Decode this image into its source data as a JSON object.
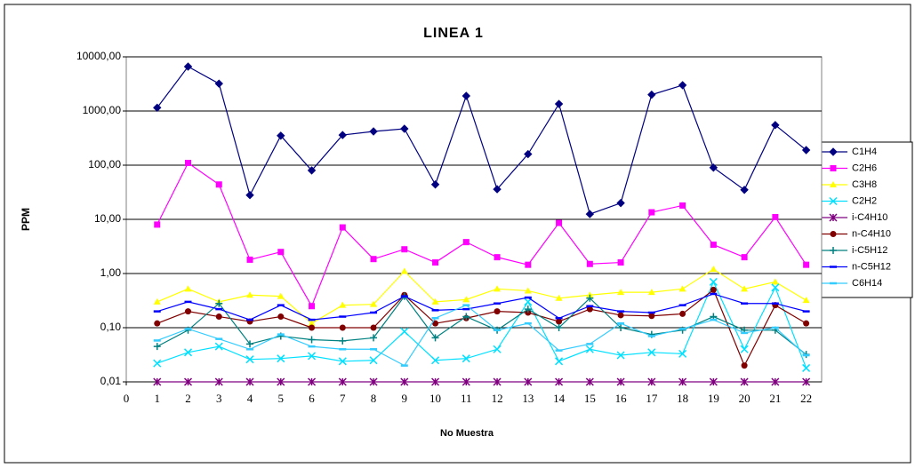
{
  "chart_data": {
    "type": "line",
    "title": "LINEA 1",
    "y_label": "PPM",
    "x_label": "No Muestra",
    "log_y": true,
    "grid": true,
    "legend": "right",
    "x": [
      1,
      2,
      3,
      4,
      5,
      6,
      7,
      8,
      9,
      10,
      11,
      12,
      13,
      14,
      15,
      16,
      17,
      18,
      19,
      20,
      21,
      22
    ],
    "xlim": [
      0,
      22.5
    ],
    "xticks": [
      0,
      1,
      2,
      3,
      4,
      5,
      6,
      7,
      8,
      9,
      10,
      11,
      12,
      13,
      14,
      15,
      16,
      17,
      18,
      19,
      20,
      21,
      22
    ],
    "ylim": [
      0.01,
      10000
    ],
    "yticks": [
      {
        "value": 0.01,
        "label": "0,01"
      },
      {
        "value": 0.1,
        "label": "0,10"
      },
      {
        "value": 1,
        "label": "1,00"
      },
      {
        "value": 10,
        "label": "10,00"
      },
      {
        "value": 100,
        "label": "100,00"
      },
      {
        "value": 1000,
        "label": "1000,00"
      },
      {
        "value": 10000,
        "label": "10000,00"
      }
    ],
    "series": [
      {
        "name": "C1H4",
        "color": "#000080",
        "marker": "diamond",
        "values": [
          1150,
          6600,
          3200,
          28,
          350,
          80,
          360,
          420,
          470,
          44,
          1900,
          36,
          160,
          1350,
          12.5,
          20,
          2000,
          3000,
          90,
          35,
          550,
          190
        ]
      },
      {
        "name": "C2H6",
        "color": "#FF00FF",
        "marker": "square",
        "values": [
          8,
          110,
          44,
          1.8,
          2.5,
          0.25,
          7.1,
          1.85,
          2.8,
          1.6,
          3.8,
          2,
          1.45,
          8.6,
          1.5,
          1.6,
          13.5,
          18,
          3.4,
          2,
          11,
          1.45
        ]
      },
      {
        "name": "C3H8",
        "color": "#FFFF00",
        "marker": "triangle",
        "values": [
          0.3,
          0.52,
          0.3,
          0.4,
          0.38,
          0.12,
          0.26,
          0.27,
          1.1,
          0.3,
          0.33,
          0.52,
          0.48,
          0.35,
          0.4,
          0.45,
          0.45,
          0.52,
          1.2,
          0.52,
          0.7,
          0.32
        ]
      },
      {
        "name": "C2H2",
        "color": "#00E0FF",
        "marker": "x",
        "values": [
          0.022,
          0.035,
          0.045,
          0.026,
          0.027,
          0.03,
          0.024,
          0.025,
          0.085,
          0.025,
          0.027,
          0.04,
          0.3,
          0.024,
          0.04,
          0.031,
          0.035,
          0.033,
          0.7,
          0.04,
          0.55,
          0.018
        ]
      },
      {
        "name": "i-C4H10",
        "color": "#800080",
        "marker": "star",
        "values": [
          0.01,
          0.01,
          0.01,
          0.01,
          0.01,
          0.01,
          0.01,
          0.01,
          0.01,
          0.01,
          0.01,
          0.01,
          0.01,
          0.01,
          0.01,
          0.01,
          0.01,
          0.01,
          0.01,
          0.01,
          0.01,
          0.01
        ]
      },
      {
        "name": "n-C4H10",
        "color": "#800000",
        "marker": "circle",
        "values": [
          0.12,
          0.2,
          0.16,
          0.13,
          0.16,
          0.1,
          0.1,
          0.1,
          0.4,
          0.12,
          0.15,
          0.2,
          0.19,
          0.13,
          0.22,
          0.17,
          0.165,
          0.18,
          0.5,
          0.02,
          0.26,
          0.12
        ]
      },
      {
        "name": "i-C5H12",
        "color": "#008080",
        "marker": "plus",
        "values": [
          0.045,
          0.09,
          0.28,
          0.05,
          0.07,
          0.06,
          0.057,
          0.065,
          0.38,
          0.065,
          0.16,
          0.09,
          0.22,
          0.1,
          0.35,
          0.1,
          0.075,
          0.09,
          0.16,
          0.09,
          0.09,
          0.032
        ]
      },
      {
        "name": "n-C5H12",
        "color": "#0000FF",
        "marker": "dash",
        "values": [
          0.2,
          0.3,
          0.22,
          0.14,
          0.26,
          0.14,
          0.16,
          0.19,
          0.38,
          0.21,
          0.22,
          0.28,
          0.36,
          0.15,
          0.25,
          0.2,
          0.19,
          0.26,
          0.42,
          0.28,
          0.28,
          0.2
        ]
      },
      {
        "name": "C6H14",
        "color": "#33CCFF",
        "marker": "dash",
        "values": [
          0.058,
          0.095,
          0.062,
          0.04,
          0.075,
          0.045,
          0.04,
          0.04,
          0.02,
          0.15,
          0.26,
          0.09,
          0.12,
          0.038,
          0.05,
          0.12,
          0.07,
          0.095,
          0.14,
          0.08,
          0.1,
          0.031
        ]
      }
    ]
  }
}
